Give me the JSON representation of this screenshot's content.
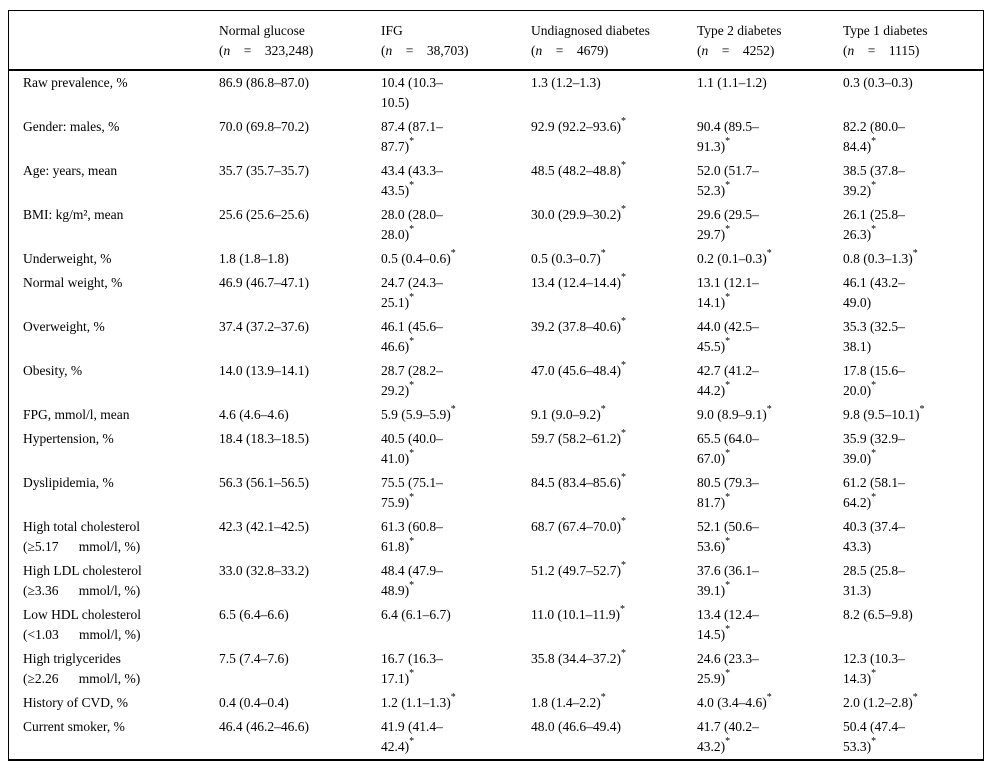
{
  "table": {
    "significance_marker": "*",
    "header": {
      "stub": "",
      "n_symbol": "n",
      "equals": "=",
      "columns": [
        {
          "name": "Normal glucose",
          "n": "323,248"
        },
        {
          "name": "IFG",
          "n": "38,703"
        },
        {
          "name": "Undiagnosed diabetes",
          "n": "4679"
        },
        {
          "name": "Type 2 diabetes",
          "n": "4252"
        },
        {
          "name": "Type 1 diabetes",
          "n": "1115"
        }
      ]
    },
    "rows": [
      {
        "label": "Raw prevalence, %",
        "cells": [
          {
            "v": "86.9 (86.8–87.0)",
            "sig": false
          },
          {
            "v": "10.4 (10.3–\n10.5)",
            "sig": false
          },
          {
            "v": "1.3 (1.2–1.3)",
            "sig": false
          },
          {
            "v": "1.1 (1.1–1.2)",
            "sig": false
          },
          {
            "v": "0.3 (0.3–0.3)",
            "sig": false
          }
        ]
      },
      {
        "label": "Gender: males, %",
        "cells": [
          {
            "v": "70.0 (69.8–70.2)",
            "sig": false
          },
          {
            "v": "87.4 (87.1–\n87.7)",
            "sig": true
          },
          {
            "v": "92.9 (92.2–93.6)",
            "sig": true
          },
          {
            "v": "90.4 (89.5–\n91.3)",
            "sig": true
          },
          {
            "v": "82.2 (80.0–\n84.4)",
            "sig": true
          }
        ]
      },
      {
        "label": "Age: years, mean",
        "cells": [
          {
            "v": "35.7 (35.7–35.7)",
            "sig": false
          },
          {
            "v": "43.4 (43.3–\n43.5)",
            "sig": true
          },
          {
            "v": "48.5 (48.2–48.8)",
            "sig": true
          },
          {
            "v": "52.0 (51.7–\n52.3)",
            "sig": true
          },
          {
            "v": "38.5 (37.8–\n39.2)",
            "sig": true
          }
        ]
      },
      {
        "label": "BMI: kg/m², mean",
        "cells": [
          {
            "v": "25.6 (25.6–25.6)",
            "sig": false
          },
          {
            "v": "28.0 (28.0–\n28.0)",
            "sig": true
          },
          {
            "v": "30.0 (29.9–30.2)",
            "sig": true
          },
          {
            "v": "29.6 (29.5–\n29.7)",
            "sig": true
          },
          {
            "v": "26.1 (25.8–\n26.3)",
            "sig": true
          }
        ]
      },
      {
        "label": "Underweight, %",
        "cells": [
          {
            "v": "1.8 (1.8–1.8)",
            "sig": false
          },
          {
            "v": "0.5 (0.4–0.6)",
            "sig": true
          },
          {
            "v": "0.5 (0.3–0.7)",
            "sig": true
          },
          {
            "v": "0.2 (0.1–0.3)",
            "sig": true
          },
          {
            "v": "0.8 (0.3–1.3)",
            "sig": true
          }
        ]
      },
      {
        "label": "Normal weight, %",
        "cells": [
          {
            "v": "46.9 (46.7–47.1)",
            "sig": false
          },
          {
            "v": "24.7 (24.3–\n25.1)",
            "sig": true
          },
          {
            "v": "13.4 (12.4–14.4)",
            "sig": true
          },
          {
            "v": "13.1 (12.1–\n14.1)",
            "sig": true
          },
          {
            "v": "46.1 (43.2–\n49.0)",
            "sig": false
          }
        ]
      },
      {
        "label": "Overweight, %",
        "cells": [
          {
            "v": "37.4 (37.2–37.6)",
            "sig": false
          },
          {
            "v": "46.1 (45.6–\n46.6)",
            "sig": true
          },
          {
            "v": "39.2 (37.8–40.6)",
            "sig": true
          },
          {
            "v": "44.0 (42.5–\n45.5)",
            "sig": true
          },
          {
            "v": "35.3 (32.5–\n38.1)",
            "sig": false
          }
        ]
      },
      {
        "label": "Obesity, %",
        "cells": [
          {
            "v": "14.0 (13.9–14.1)",
            "sig": false
          },
          {
            "v": "28.7 (28.2–\n29.2)",
            "sig": true
          },
          {
            "v": "47.0 (45.6–48.4)",
            "sig": true
          },
          {
            "v": "42.7 (41.2–\n44.2)",
            "sig": true
          },
          {
            "v": "17.8 (15.6–\n20.0)",
            "sig": true
          }
        ]
      },
      {
        "label": "FPG, mmol/l, mean",
        "cells": [
          {
            "v": "4.6 (4.6–4.6)",
            "sig": false
          },
          {
            "v": "5.9 (5.9–5.9)",
            "sig": true
          },
          {
            "v": "9.1 (9.0–9.2)",
            "sig": true
          },
          {
            "v": "9.0 (8.9–9.1)",
            "sig": true
          },
          {
            "v": "9.8 (9.5–10.1)",
            "sig": true
          }
        ]
      },
      {
        "label": "Hypertension, %",
        "cells": [
          {
            "v": "18.4 (18.3–18.5)",
            "sig": false
          },
          {
            "v": "40.5 (40.0–\n41.0)",
            "sig": true
          },
          {
            "v": "59.7 (58.2–61.2)",
            "sig": true
          },
          {
            "v": "65.5 (64.0–\n67.0)",
            "sig": true
          },
          {
            "v": "35.9 (32.9–\n39.0)",
            "sig": true
          }
        ]
      },
      {
        "label": "Dyslipidemia, %",
        "cells": [
          {
            "v": "56.3 (56.1–56.5)",
            "sig": false
          },
          {
            "v": "75.5 (75.1–\n75.9)",
            "sig": true
          },
          {
            "v": "84.5 (83.4–85.6)",
            "sig": true
          },
          {
            "v": "80.5 (79.3–\n81.7)",
            "sig": true
          },
          {
            "v": "61.2 (58.1–\n64.2)",
            "sig": true
          }
        ]
      },
      {
        "label": "High total cholesterol\n(≥5.17  mmol/l, %)",
        "cells": [
          {
            "v": "42.3 (42.1–42.5)",
            "sig": false
          },
          {
            "v": "61.3 (60.8–\n61.8)",
            "sig": true
          },
          {
            "v": "68.7 (67.4–70.0)",
            "sig": true
          },
          {
            "v": "52.1 (50.6–\n53.6)",
            "sig": true
          },
          {
            "v": "40.3 (37.4–\n43.3)",
            "sig": false
          }
        ]
      },
      {
        "label": "High LDL cholesterol\n(≥3.36  mmol/l, %)",
        "cells": [
          {
            "v": "33.0 (32.8–33.2)",
            "sig": false
          },
          {
            "v": "48.4 (47.9–\n48.9)",
            "sig": true
          },
          {
            "v": "51.2 (49.7–52.7)",
            "sig": true
          },
          {
            "v": "37.6 (36.1–\n39.1)",
            "sig": true
          },
          {
            "v": "28.5 (25.8–\n31.3)",
            "sig": false
          }
        ]
      },
      {
        "label": "Low HDL cholesterol\n(<1.03  mmol/l, %)",
        "cells": [
          {
            "v": "6.5 (6.4–6.6)",
            "sig": false
          },
          {
            "v": "6.4 (6.1–6.7)",
            "sig": false
          },
          {
            "v": "11.0 (10.1–11.9)",
            "sig": true
          },
          {
            "v": "13.4 (12.4–\n14.5)",
            "sig": true
          },
          {
            "v": "8.2 (6.5–9.8)",
            "sig": false
          }
        ]
      },
      {
        "label": "High triglycerides\n(≥2.26  mmol/l, %)",
        "cells": [
          {
            "v": "7.5 (7.4–7.6)",
            "sig": false
          },
          {
            "v": "16.7 (16.3–\n17.1)",
            "sig": true
          },
          {
            "v": "35.8 (34.4–37.2)",
            "sig": true
          },
          {
            "v": "24.6 (23.3–\n25.9)",
            "sig": true
          },
          {
            "v": "12.3 (10.3–\n14.3)",
            "sig": true
          }
        ]
      },
      {
        "label": "History of CVD, %",
        "cells": [
          {
            "v": "0.4 (0.4–0.4)",
            "sig": false
          },
          {
            "v": "1.2 (1.1–1.3)",
            "sig": true
          },
          {
            "v": "1.8 (1.4–2.2)",
            "sig": true
          },
          {
            "v": "4.0 (3.4–4.6)",
            "sig": true
          },
          {
            "v": "2.0 (1.2–2.8)",
            "sig": true
          }
        ]
      },
      {
        "label": "Current smoker, %",
        "cells": [
          {
            "v": "46.4 (46.2–46.6)",
            "sig": false
          },
          {
            "v": "41.9 (41.4–\n42.4)",
            "sig": true
          },
          {
            "v": "48.0 (46.6–49.4)",
            "sig": false
          },
          {
            "v": "41.7 (40.2–\n43.2)",
            "sig": true
          },
          {
            "v": "50.4 (47.4–\n53.3)",
            "sig": true
          }
        ]
      }
    ]
  }
}
